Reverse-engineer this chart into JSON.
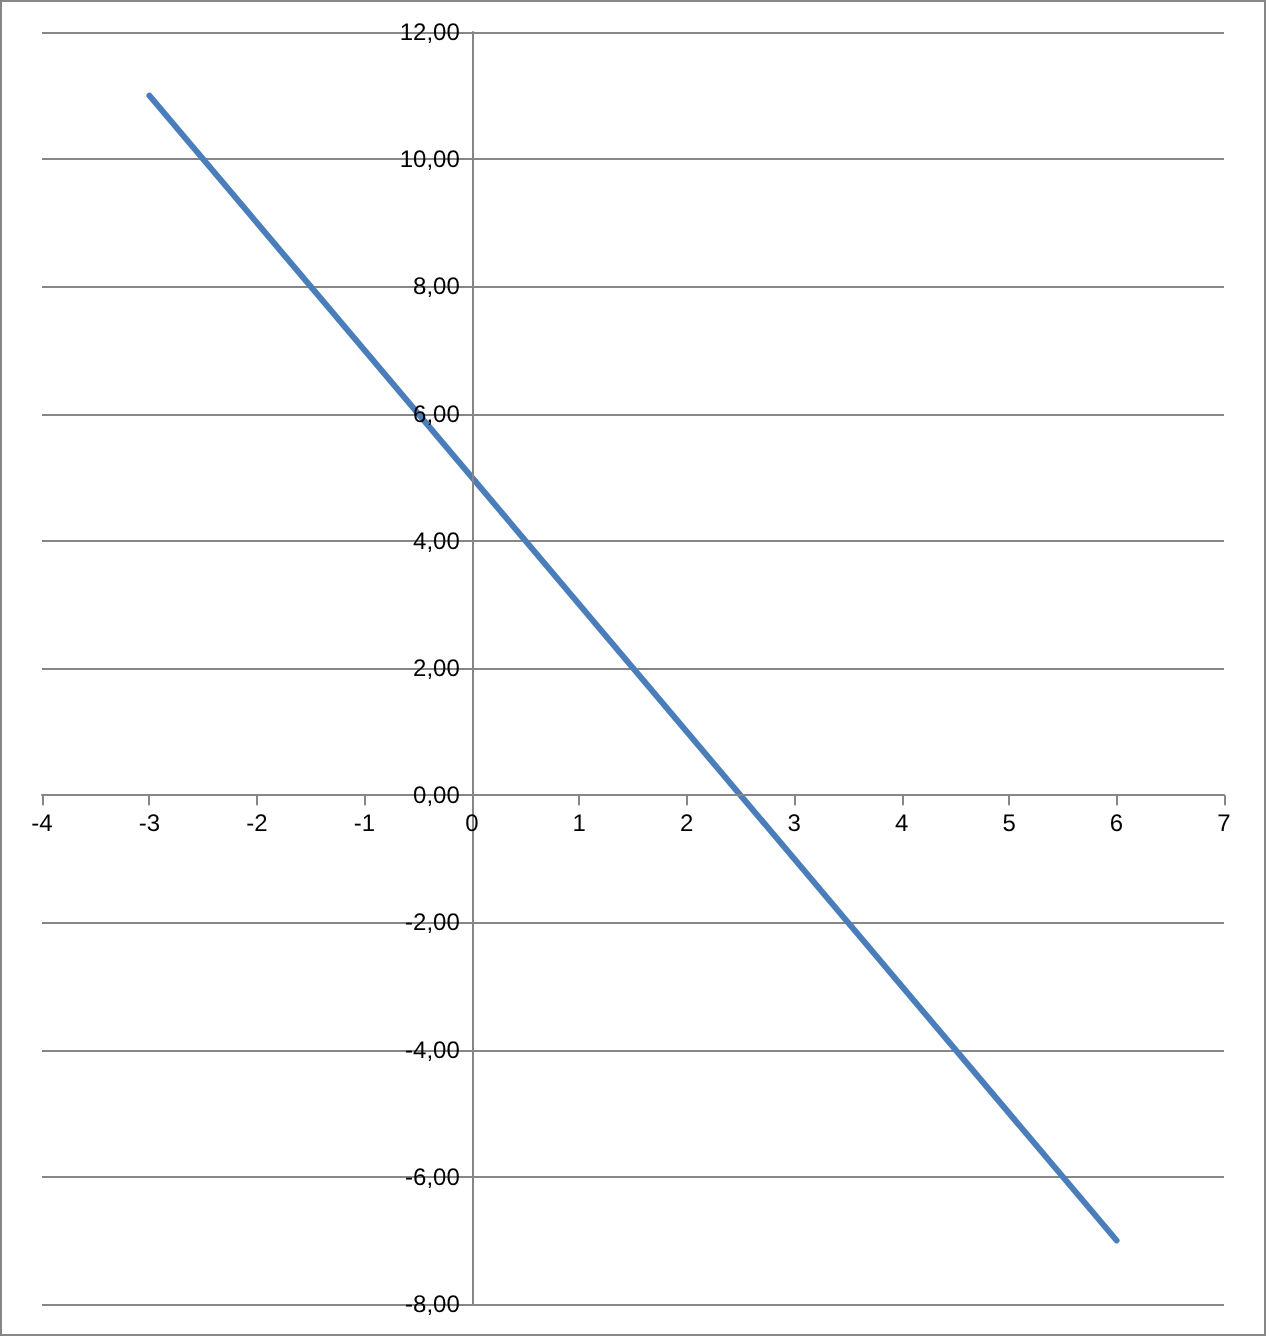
{
  "chart_data": {
    "type": "line",
    "x": [
      -3,
      6
    ],
    "values": [
      11,
      -7
    ],
    "color": "#4a7ebb",
    "xlim": [
      -4,
      7
    ],
    "xticks": [
      -4,
      -3,
      -2,
      -1,
      0,
      1,
      2,
      3,
      4,
      5,
      6,
      7
    ],
    "ylim": [
      -8,
      12
    ],
    "yticks": [
      {
        "value": -8,
        "label": "-8,00"
      },
      {
        "value": -6,
        "label": "-6,00"
      },
      {
        "value": -4,
        "label": "-4,00"
      },
      {
        "value": -2,
        "label": "-2,00"
      },
      {
        "value": 0,
        "label": "0,00"
      },
      {
        "value": 2,
        "label": "2,00"
      },
      {
        "value": 4,
        "label": "4,00"
      },
      {
        "value": 6,
        "label": "6,00"
      },
      {
        "value": 8,
        "label": "8,00"
      },
      {
        "value": 10,
        "label": "10,00"
      },
      {
        "value": 12,
        "label": "12,00"
      }
    ],
    "grid": "y",
    "marker": "none",
    "line_style": "solid"
  }
}
